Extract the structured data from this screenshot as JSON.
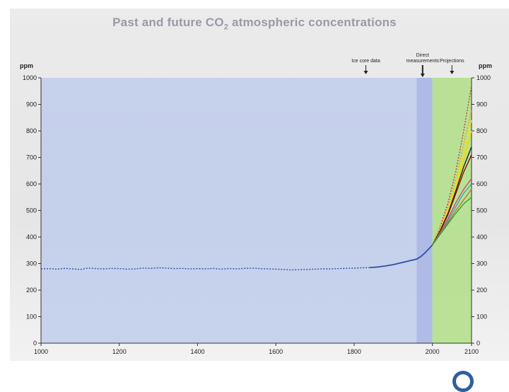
{
  "slide": {
    "title_main": "Past and future CO",
    "title_sub": "2",
    "title_rest": " atmospheric concentrations"
  },
  "colors": {
    "ice_core_region": "#b9c8ec",
    "direct_region": "#a8b6e6",
    "projection_region": "#b3e08c",
    "observed_line": "#2f4fa8"
  },
  "chart_data": {
    "type": "line",
    "title": "Past and future CO2 atmospheric concentrations",
    "xlim": [
      1000,
      2100
    ],
    "ylim": [
      0,
      1000
    ],
    "x_ticks": [
      1000,
      1200,
      1400,
      1600,
      1800,
      2000,
      2100
    ],
    "y_ticks": [
      0,
      100,
      200,
      300,
      400,
      500,
      600,
      700,
      800,
      900,
      1000
    ],
    "y_unit_left": "ppm",
    "y_unit_right": "ppm",
    "regions": [
      {
        "name": "Ice core data",
        "x_start": 1000,
        "x_end": 1960
      },
      {
        "name": "Direct measurements",
        "x_start": 1960,
        "x_end": 2000
      },
      {
        "name": "Projections",
        "x_start": 2000,
        "x_end": 2100
      }
    ],
    "annotations": [
      {
        "lines": [
          "Ice core data"
        ],
        "x": 1830
      },
      {
        "lines": [
          "Direct",
          "measurements"
        ],
        "x": 1975
      },
      {
        "lines": [
          "Projections"
        ],
        "x": 2050
      }
    ],
    "observed": {
      "x": [
        1000,
        1020,
        1040,
        1060,
        1080,
        1100,
        1120,
        1140,
        1160,
        1180,
        1200,
        1220,
        1240,
        1260,
        1280,
        1300,
        1320,
        1340,
        1360,
        1380,
        1400,
        1420,
        1440,
        1460,
        1480,
        1500,
        1520,
        1540,
        1560,
        1580,
        1600,
        1620,
        1640,
        1660,
        1680,
        1700,
        1720,
        1740,
        1760,
        1780,
        1800,
        1820,
        1840,
        1860,
        1880,
        1900,
        1920,
        1940,
        1960,
        1970,
        1980,
        1990,
        2000
      ],
      "y": [
        280,
        281,
        279,
        282,
        280,
        278,
        283,
        281,
        280,
        282,
        281,
        279,
        280,
        283,
        282,
        284,
        283,
        281,
        282,
        280,
        281,
        280,
        282,
        279,
        281,
        280,
        282,
        283,
        281,
        280,
        279,
        278,
        276,
        277,
        278,
        279,
        280,
        280,
        281,
        282,
        283,
        284,
        285,
        287,
        291,
        296,
        303,
        310,
        317,
        326,
        339,
        354,
        370
      ]
    },
    "projections": {
      "x": [
        2000,
        2020,
        2040,
        2060,
        2080,
        2100
      ],
      "series": [
        {
          "color": "#c0392b",
          "dashed": true,
          "values": [
            370,
            440,
            530,
            650,
            800,
            970
          ]
        },
        {
          "color": "#e8a020",
          "dashed": true,
          "values": [
            370,
            435,
            515,
            620,
            750,
            880
          ]
        },
        {
          "color": "#f2e200",
          "dashed": false,
          "values": [
            370,
            430,
            500,
            595,
            710,
            840
          ]
        },
        {
          "color": "#f0d800",
          "dashed": false,
          "values": [
            370,
            428,
            495,
            585,
            690,
            800
          ]
        },
        {
          "color": "#1a1a1a",
          "dashed": false,
          "values": [
            370,
            425,
            490,
            575,
            665,
            740
          ]
        },
        {
          "color": "#8b0000",
          "dashed": false,
          "values": [
            370,
            423,
            485,
            565,
            645,
            710
          ]
        },
        {
          "color": "#d04080",
          "dashed": false,
          "values": [
            370,
            418,
            470,
            530,
            580,
            620
          ]
        },
        {
          "color": "#2ca8a8",
          "dashed": false,
          "values": [
            370,
            415,
            462,
            515,
            565,
            600
          ]
        },
        {
          "color": "#c07030",
          "dashed": false,
          "values": [
            370,
            412,
            455,
            500,
            540,
            580
          ]
        },
        {
          "color": "#2a9d3a",
          "dashed": false,
          "values": [
            370,
            410,
            450,
            490,
            525,
            550
          ]
        }
      ]
    }
  }
}
